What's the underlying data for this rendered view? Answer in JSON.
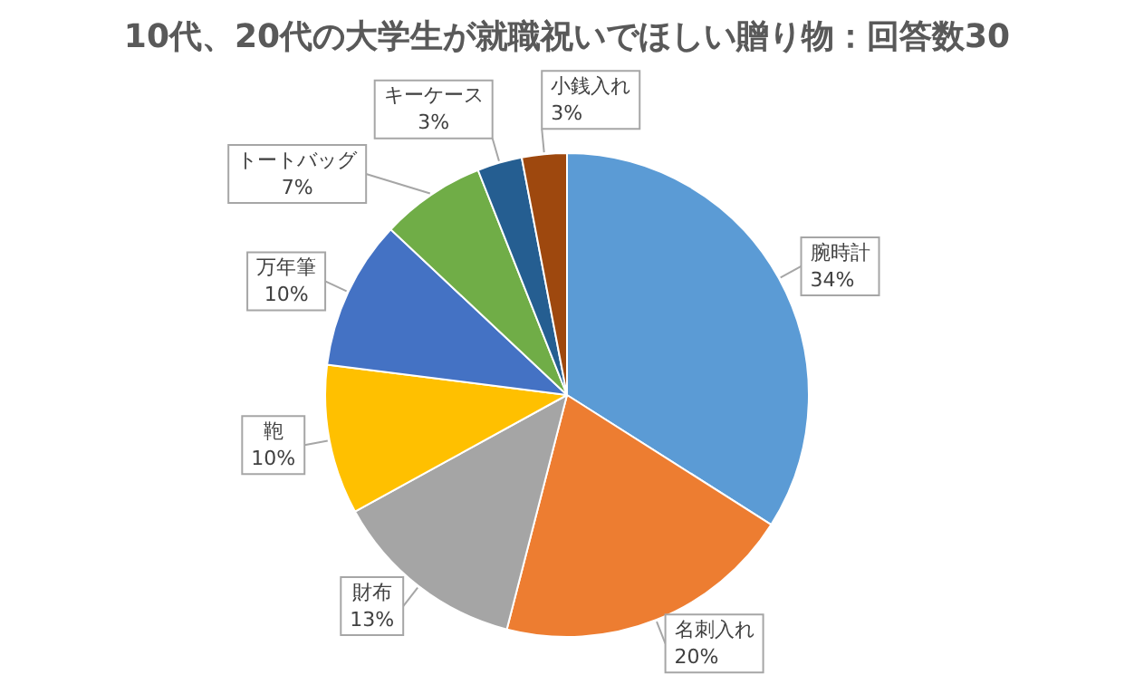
{
  "chart_data": {
    "type": "pie",
    "title": "10代、20代の大学生が就職祝いでほしい贈り物：回答数30",
    "categories": [
      "腕時計",
      "名刺入れ",
      "財布",
      "鞄",
      "万年筆",
      "トートバッグ",
      "キーケース",
      "小銭入れ"
    ],
    "values": [
      34,
      20,
      13,
      10,
      10,
      7,
      3,
      3
    ],
    "value_labels": [
      "34%",
      "20%",
      "13%",
      "10%",
      "10%",
      "7%",
      "3%",
      "3%"
    ],
    "colors": [
      "#5b9bd5",
      "#ed7d31",
      "#a5a5a5",
      "#ffc000",
      "#4472c4",
      "#70ad47",
      "#255e91",
      "#9e480e"
    ],
    "legend": false
  }
}
